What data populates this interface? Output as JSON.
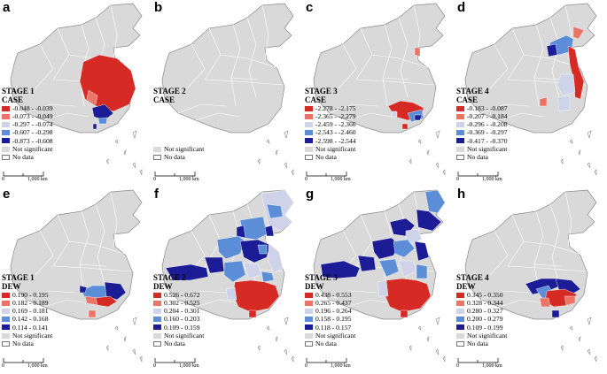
{
  "scale_bar": {
    "zero": "0",
    "max": "1,000 km"
  },
  "colors": {
    "not_significant": "#d9d9d9",
    "outline": "#8a8a8a",
    "red_strong": "#d62a24",
    "red_light": "#ec7466",
    "pale_blue": "#cfd3ea",
    "mid_blue": "#5b8ed6",
    "dark_blue": "#1c1d96"
  },
  "panels": [
    {
      "letter": "a",
      "stage": "STAGE 1",
      "variable": "CASE",
      "legend": [
        "-0.048 - -0.039",
        "-0.073 - -0.049",
        "-0.297 - -0.074",
        "-0.607 - -0.298",
        "-0.873 - -0.608"
      ],
      "not_significant": "Not significant",
      "no_data": "No data"
    },
    {
      "letter": "b",
      "stage": "STAGE 2",
      "variable": "CASE",
      "legend": [],
      "not_significant": "Not significant",
      "no_data": "No data"
    },
    {
      "letter": "c",
      "stage": "STAGE 3",
      "variable": "CASE",
      "legend": [
        "-2.278 - -2.175",
        "-2.365 - -2.279",
        "-2.459 - -2.366",
        "-2.543 - -2.460",
        "-2.598 - -2.544"
      ],
      "not_significant": "Not significant",
      "no_data": "No data"
    },
    {
      "letter": "d",
      "stage": "STAGE 4",
      "variable": "CASE",
      "legend": [
        "-0.183 - -0.087",
        "-0.207 - -0.184",
        "-0.296 - -0.208",
        "-0.369 - -0.297",
        "-0.417 - -0.370"
      ],
      "not_significant": "Not significant",
      "no_data": "No data"
    },
    {
      "letter": "e",
      "stage": "STAGE 1",
      "variable": "DEW",
      "legend": [
        "0.190 - 0.195",
        "0.182 - 0.189",
        "0.169 - 0.181",
        "0.142 - 0.168",
        "0.114 - 0.141"
      ],
      "not_significant": "Not significant",
      "no_data": "No data"
    },
    {
      "letter": "f",
      "stage": "STAGE 2",
      "variable": "DEW",
      "legend": [
        "0.526 - 0.672",
        "0.302 - 0.525",
        "0.204 - 0.301",
        "0.160 - 0.203",
        "0.109 - 0.159"
      ],
      "not_significant": "Not significant",
      "no_data": "No data"
    },
    {
      "letter": "g",
      "stage": "STAGE 3",
      "variable": "DEW",
      "legend": [
        "0.438 - 0.553",
        "0.265 - 0.437",
        "0.196 - 0.264",
        "0.158 - 0.195",
        "0.118 - 0.157"
      ],
      "not_significant": "Not significant",
      "no_data": "No data"
    },
    {
      "letter": "h",
      "stage": "STAGE 4",
      "variable": "DEW",
      "legend": [
        "0.345 - 0.350",
        "0.328 - 0.344",
        "0.280 - 0.327",
        "0.200 - 0.279",
        "0.109 - 0.199"
      ],
      "not_significant": "Not significant",
      "no_data": "No data"
    }
  ]
}
